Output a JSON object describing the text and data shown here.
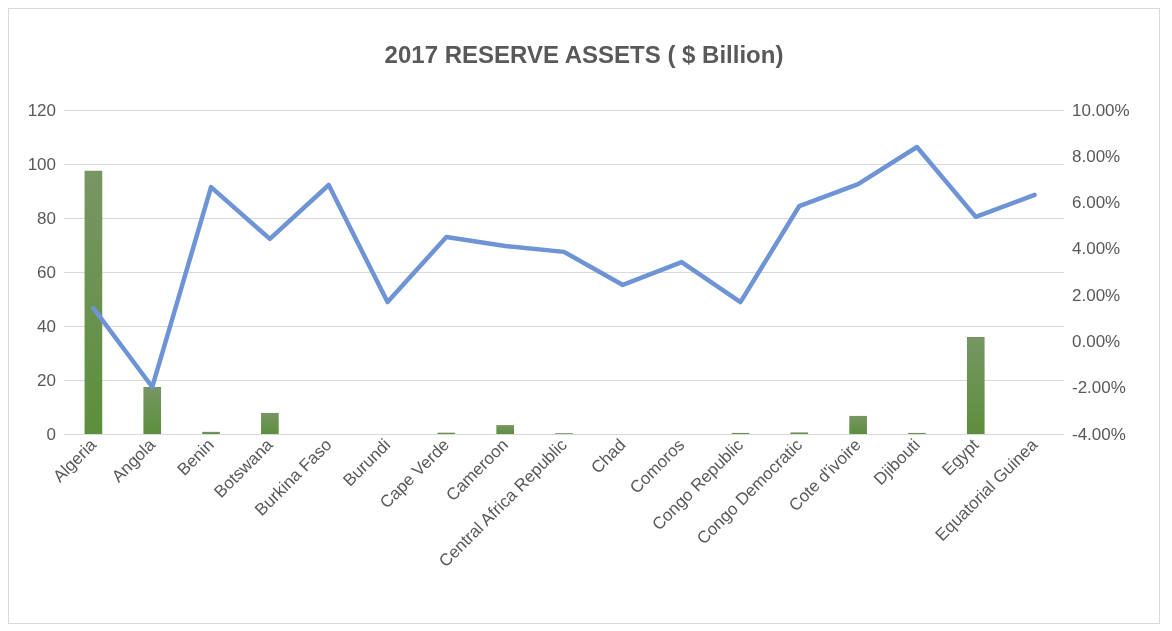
{
  "chart_data": {
    "type": "bar",
    "title": "2017 RESERVE ASSETS ( $ Billion)",
    "categories": [
      "Algeria",
      "Angola",
      "Benin",
      "Botswana",
      "Burkina Faso",
      "Burundi",
      "Cape Verde",
      "Cameroon",
      "Central Africa Republic",
      "Chad",
      "Comoros",
      "Congo Republic",
      "Congo Democratic",
      "Cote d'ivoire",
      "Djibouti",
      "Egypt",
      "Equatorial Guinea"
    ],
    "series": [
      {
        "color": "#4a7330",
        "values": [
          97.5,
          17.4,
          0.8,
          7.8,
          0,
          0,
          0.5,
          3.3,
          0.3,
          0,
          0,
          0.4,
          0.6,
          6.7,
          0.4,
          35.9,
          0
        ]
      },
      {
        "type": "line",
        "axis": "y2",
        "color": "#6f94d6",
        "values": [
          1.44,
          -1.97,
          6.67,
          4.43,
          6.76,
          1.7,
          4.51,
          4.12,
          3.87,
          2.44,
          3.43,
          1.7,
          5.85,
          6.8,
          8.4,
          5.38,
          6.33
        ]
      }
    ],
    "ylim": [
      0,
      120
    ],
    "yticks": [
      0,
      20,
      40,
      60,
      80,
      100,
      120
    ],
    "y2lim": [
      -4,
      10
    ],
    "y2ticks": [
      {
        "value": -4,
        "label": "-4.00%"
      },
      {
        "value": -2,
        "label": "-2.00%"
      },
      {
        "value": 0,
        "label": "0.00%"
      },
      {
        "value": 2,
        "label": "2.00%"
      },
      {
        "value": 4,
        "label": "4.00%"
      },
      {
        "value": 6,
        "label": "6.00%"
      },
      {
        "value": 8,
        "label": "8.00%"
      },
      {
        "value": 10,
        "label": "10.00%"
      }
    ],
    "grid": "y",
    "marker": "none",
    "line_style": "solid"
  }
}
